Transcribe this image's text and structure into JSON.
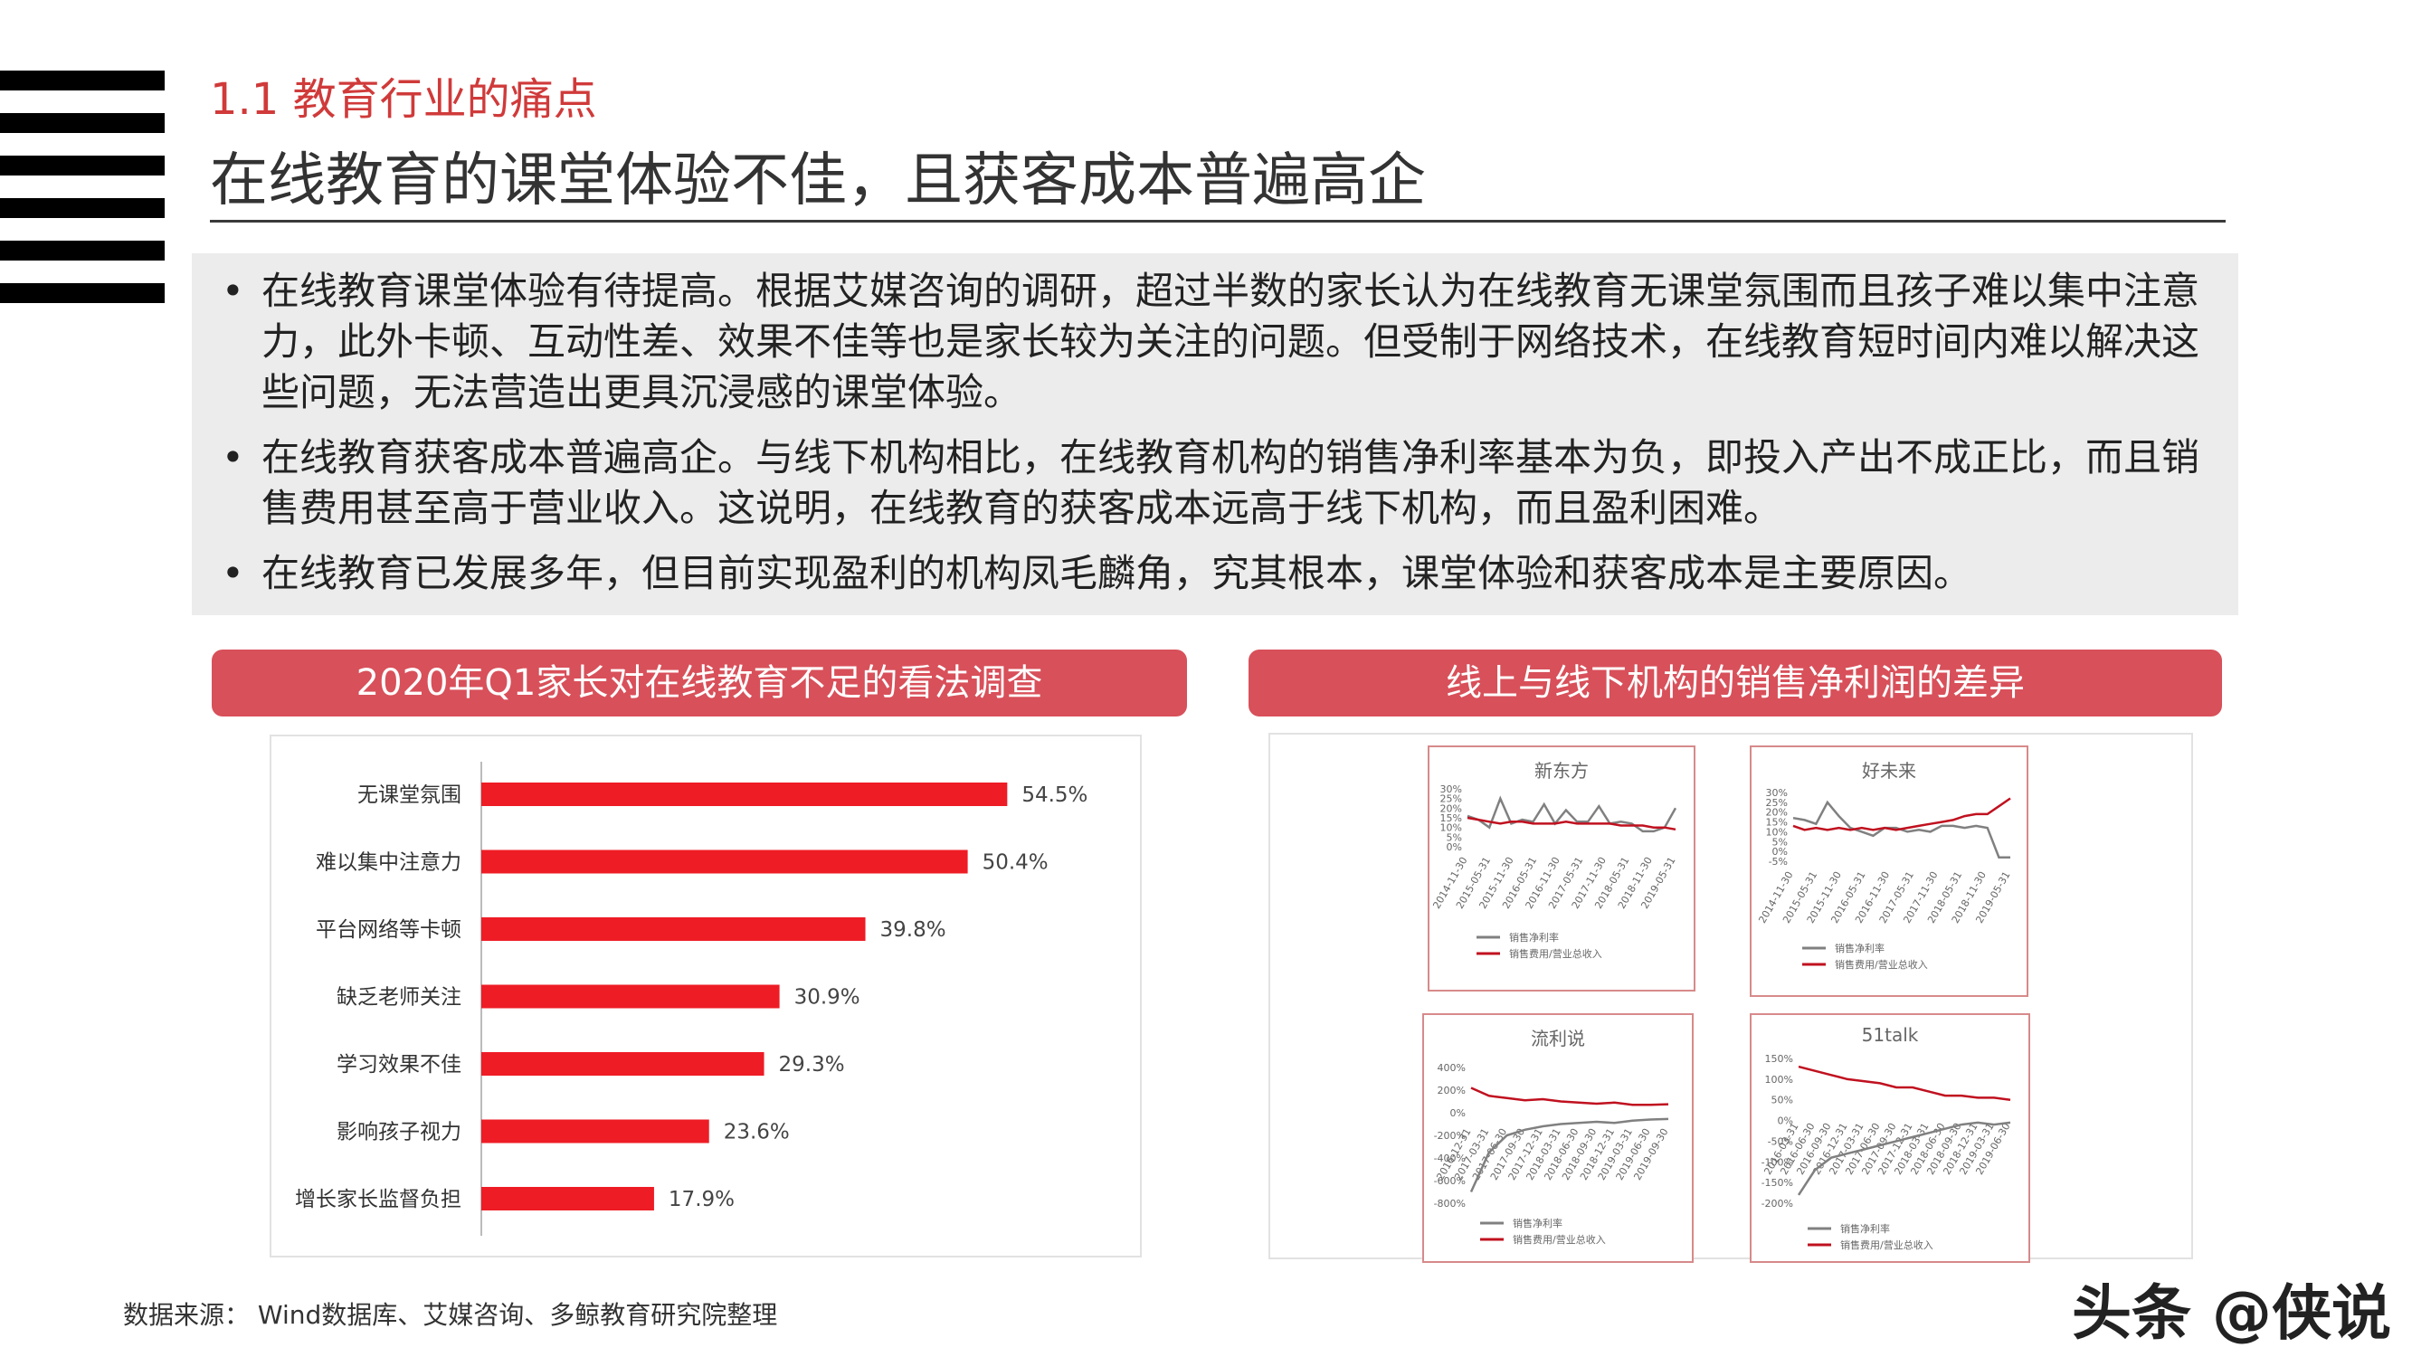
{
  "header": {
    "section_label": "1.1 教育行业的痛点",
    "title": "在线教育的课堂体验不佳，且获客成本普遍高企"
  },
  "bullets": [
    {
      "text": "在线教育课堂体验有待提高。根据艾媒咨询的调研，超过半数的家长认为在线教育无课堂氛围而且孩子难以集中注意力，此外卡顿、互动性差、效果不佳等也是家长较为关注的问题。但受制于网络技术，在线教育短时间内难以解决这些问题，无法营造出更具沉浸感的课堂体验。"
    },
    {
      "text": "在线教育获客成本普遍高企。与线下机构相比，在线教育机构的销售净利率基本为负，即投入产出不成正比，而且销售费用甚至高于营业收入。这说明，在线教育的获客成本远高于线下机构，而且盈利困难。"
    },
    {
      "text": "在线教育已发展多年，但目前实现盈利的机构凤毛麟角，究其根本，课堂体验和获客成本是主要原因。"
    }
  ],
  "left_panel": {
    "header": "2020年Q1家长对在线教育不足的看法调查"
  },
  "right_panel": {
    "header": "线上与线下机构的销售净利润的差异"
  },
  "source": "数据来源： Wind数据库、艾媒咨询、多鲸教育研究院整理",
  "watermark": "头条 @侠说",
  "colors": {
    "accent": "#d8505a",
    "bar": "#ee1c25",
    "gray_line": "#808080",
    "red_line": "#c0111f"
  },
  "chart_data": [
    {
      "type": "bar",
      "orientation": "horizontal",
      "categories": [
        "无课堂氛围",
        "难以集中注意力",
        "平台网络等卡顿",
        "缺乏老师关注",
        "学习效果不佳",
        "影响孩子视力",
        "增长家长监督负担"
      ],
      "values": [
        54.5,
        50.4,
        39.8,
        30.9,
        29.3,
        23.6,
        17.9
      ],
      "value_labels": [
        "54.5%",
        "50.4%",
        "39.8%",
        "30.9%",
        "29.3%",
        "23.6%",
        "17.9%"
      ],
      "xlim": [
        0,
        60
      ]
    },
    {
      "type": "line",
      "title": "新东方",
      "x_ticks": [
        "2014-11-30",
        "2015-05-31",
        "2015-11-30",
        "2016-05-31",
        "2016-11-30",
        "2017-05-31",
        "2017-11-30",
        "2018-05-31",
        "2018-11-30",
        "2019-05-31"
      ],
      "y_ticks": [
        "30%",
        "25%",
        "20%",
        "15%",
        "10%",
        "5%",
        "0%"
      ],
      "ylim": [
        0,
        30
      ],
      "series": [
        {
          "name": "销售净利率",
          "color": "gray",
          "values": [
            16,
            14,
            10,
            25,
            12,
            14,
            13,
            22,
            12,
            19,
            13,
            13,
            21,
            12,
            13,
            12,
            8,
            8,
            10,
            20
          ]
        },
        {
          "name": "销售费用/营业总收入",
          "color": "red",
          "values": [
            15,
            14,
            13,
            12,
            13,
            13,
            12,
            12,
            12,
            13,
            12,
            12,
            12,
            12,
            11,
            11,
            11,
            10,
            10,
            9
          ]
        }
      ]
    },
    {
      "type": "line",
      "title": "好未来",
      "x_ticks": [
        "2014-11-30",
        "2015-05-31",
        "2015-11-30",
        "2016-05-31",
        "2016-11-30",
        "2017-05-31",
        "2017-11-30",
        "2018-05-31",
        "2018-11-30",
        "2019-05-31"
      ],
      "y_ticks": [
        "30%",
        "25%",
        "20%",
        "15%",
        "10%",
        "5%",
        "0%",
        "-5%"
      ],
      "ylim": [
        -5,
        30
      ],
      "series": [
        {
          "name": "销售净利率",
          "color": "gray",
          "values": [
            17,
            16,
            14,
            25,
            18,
            12,
            10,
            8,
            12,
            12,
            10,
            11,
            10,
            13,
            13,
            12,
            13,
            12,
            -3,
            -3
          ]
        },
        {
          "name": "销售费用/营业总收入",
          "color": "red",
          "values": [
            13,
            11,
            12,
            11,
            12,
            11,
            12,
            11,
            12,
            11,
            12,
            13,
            14,
            15,
            16,
            18,
            19,
            19,
            23,
            27
          ]
        }
      ]
    },
    {
      "type": "line",
      "title": "流利说",
      "x_ticks": [
        "2016-12-31",
        "2017-03-31",
        "2017-06-30",
        "2017-09-30",
        "2017-12-31",
        "2018-03-31",
        "2018-06-30",
        "2018-09-30",
        "2018-12-31",
        "2019-03-31",
        "2019-06-30",
        "2019-09-30"
      ],
      "y_ticks": [
        "400%",
        "200%",
        "0%",
        "-200%",
        "-400%",
        "-600%",
        "-800%"
      ],
      "ylim": [
        -800,
        400
      ],
      "series": [
        {
          "name": "销售净利率",
          "color": "gray",
          "values": [
            -700,
            -350,
            -200,
            -150,
            -120,
            -100,
            -90,
            -80,
            -90,
            -70,
            -60,
            -55
          ]
        },
        {
          "name": "销售费用/营业总收入",
          "color": "red",
          "values": [
            220,
            150,
            130,
            110,
            120,
            100,
            90,
            80,
            90,
            70,
            70,
            75
          ]
        }
      ]
    },
    {
      "type": "line",
      "title": "51talk",
      "x_ticks": [
        "2016-03-31",
        "2016-06-30",
        "2016-09-30",
        "2016-12-31",
        "2017-03-31",
        "2017-06-30",
        "2017-09-30",
        "2017-12-31",
        "2018-03-31",
        "2018-06-30",
        "2018-09-30",
        "2018-12-31",
        "2019-03-31",
        "2019-06-30"
      ],
      "y_ticks": [
        "150%",
        "100%",
        "50%",
        "0%",
        "-50%",
        "-100%",
        "-150%",
        "-200%"
      ],
      "ylim": [
        -200,
        150
      ],
      "series": [
        {
          "name": "销售净利率",
          "color": "gray",
          "values": [
            -180,
            -120,
            -90,
            -80,
            -70,
            -60,
            -50,
            -40,
            -30,
            -20,
            -10,
            -5,
            -10,
            -5
          ]
        },
        {
          "name": "销售费用/营业总收入",
          "color": "red",
          "values": [
            130,
            120,
            110,
            100,
            95,
            90,
            80,
            80,
            70,
            60,
            60,
            55,
            55,
            50
          ]
        }
      ]
    }
  ]
}
